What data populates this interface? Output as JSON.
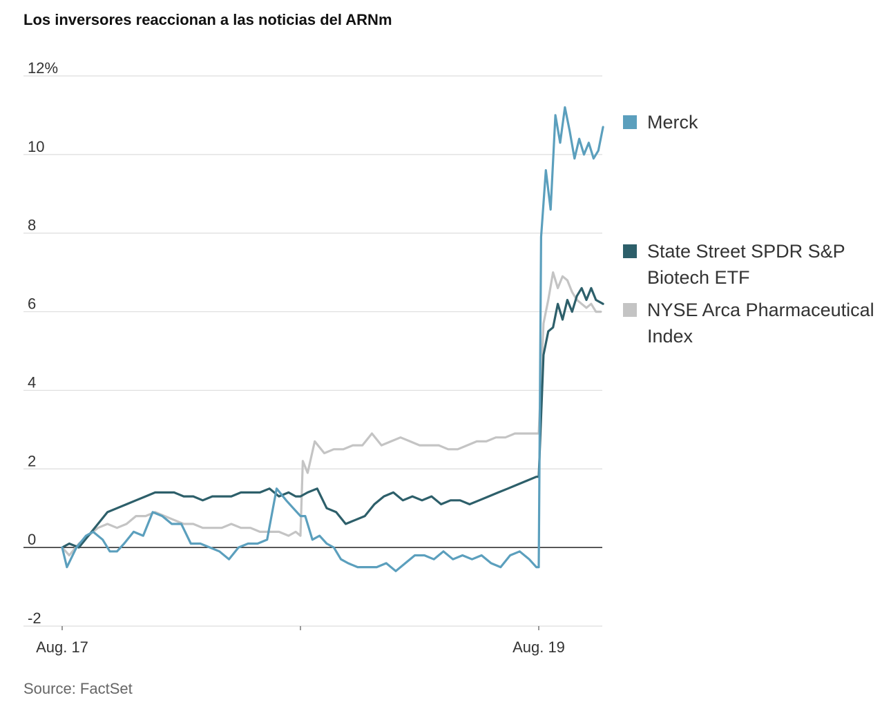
{
  "title": "Los inversores reaccionan a las noticias del ARNm",
  "source": "Source: FactSet",
  "chart_data": {
    "type": "line",
    "ylim": [
      -2,
      12
    ],
    "yticks": [
      "12%",
      "10",
      "8",
      "6",
      "4",
      "2",
      "0",
      "-2"
    ],
    "ytick_values": [
      12,
      10,
      8,
      6,
      4,
      2,
      0,
      -2
    ],
    "xticks": [
      "Aug. 17",
      "",
      "Aug. 19"
    ],
    "xtick_values": [
      0,
      1,
      2
    ],
    "xlim": [
      0,
      2.27
    ],
    "grid": true,
    "legend_position": "right",
    "series": [
      {
        "name": "Merck",
        "color": "#5b9fbd",
        "x": [
          0,
          0.02,
          0.06,
          0.1,
          0.13,
          0.17,
          0.2,
          0.23,
          0.26,
          0.3,
          0.34,
          0.38,
          0.42,
          0.46,
          0.5,
          0.54,
          0.58,
          0.62,
          0.66,
          0.7,
          0.74,
          0.78,
          0.82,
          0.86,
          0.9,
          0.94,
          0.97,
          1.0,
          1.02,
          1.05,
          1.08,
          1.11,
          1.14,
          1.17,
          1.2,
          1.24,
          1.28,
          1.32,
          1.36,
          1.4,
          1.44,
          1.48,
          1.52,
          1.56,
          1.6,
          1.64,
          1.68,
          1.72,
          1.76,
          1.8,
          1.84,
          1.88,
          1.92,
          1.96,
          1.99,
          2.0,
          2.01,
          2.03,
          2.05,
          2.07,
          2.09,
          2.11,
          2.13,
          2.15,
          2.17,
          2.19,
          2.21,
          2.23,
          2.25,
          2.27
        ],
        "values": [
          0.0,
          -0.5,
          0.0,
          0.3,
          0.4,
          0.2,
          -0.1,
          -0.1,
          0.1,
          0.4,
          0.3,
          0.9,
          0.8,
          0.6,
          0.6,
          0.1,
          0.1,
          0.0,
          -0.1,
          -0.3,
          0.0,
          0.1,
          0.1,
          0.2,
          1.5,
          1.2,
          1.0,
          0.8,
          0.8,
          0.2,
          0.3,
          0.1,
          0.0,
          -0.3,
          -0.4,
          -0.5,
          -0.5,
          -0.5,
          -0.4,
          -0.6,
          -0.4,
          -0.2,
          -0.2,
          -0.3,
          -0.1,
          -0.3,
          -0.2,
          -0.3,
          -0.2,
          -0.4,
          -0.5,
          -0.2,
          -0.1,
          -0.3,
          -0.5,
          -0.5,
          7.9,
          9.6,
          8.6,
          11.0,
          10.3,
          11.2,
          10.6,
          9.9,
          10.4,
          10.0,
          10.3,
          9.9,
          10.1,
          10.7
        ]
      },
      {
        "name": "State Street SPDR S&P Biotech ETF",
        "color": "#2d5f6a",
        "x": [
          0,
          0.03,
          0.07,
          0.11,
          0.15,
          0.19,
          0.23,
          0.27,
          0.31,
          0.35,
          0.39,
          0.43,
          0.47,
          0.51,
          0.55,
          0.59,
          0.63,
          0.67,
          0.71,
          0.75,
          0.79,
          0.83,
          0.87,
          0.91,
          0.95,
          0.98,
          1.0,
          1.03,
          1.07,
          1.11,
          1.15,
          1.19,
          1.23,
          1.27,
          1.31,
          1.35,
          1.39,
          1.43,
          1.47,
          1.51,
          1.55,
          1.59,
          1.63,
          1.67,
          1.71,
          1.75,
          1.79,
          1.83,
          1.87,
          1.91,
          1.95,
          1.99,
          2.0,
          2.02,
          2.04,
          2.06,
          2.08,
          2.1,
          2.12,
          2.14,
          2.16,
          2.18,
          2.2,
          2.22,
          2.24,
          2.27
        ],
        "values": [
          0.0,
          0.1,
          0.0,
          0.3,
          0.6,
          0.9,
          1.0,
          1.1,
          1.2,
          1.3,
          1.4,
          1.4,
          1.4,
          1.3,
          1.3,
          1.2,
          1.3,
          1.3,
          1.3,
          1.4,
          1.4,
          1.4,
          1.5,
          1.3,
          1.4,
          1.3,
          1.3,
          1.4,
          1.5,
          1.0,
          0.9,
          0.6,
          0.7,
          0.8,
          1.1,
          1.3,
          1.4,
          1.2,
          1.3,
          1.2,
          1.3,
          1.1,
          1.2,
          1.2,
          1.1,
          1.2,
          1.3,
          1.4,
          1.5,
          1.6,
          1.7,
          1.8,
          1.8,
          4.9,
          5.5,
          5.6,
          6.2,
          5.8,
          6.3,
          6.0,
          6.4,
          6.6,
          6.3,
          6.6,
          6.3,
          6.2
        ]
      },
      {
        "name": "NYSE Arca Pharmaceutical Index",
        "color": "#c4c4c4",
        "x": [
          0,
          0.03,
          0.07,
          0.11,
          0.15,
          0.19,
          0.23,
          0.27,
          0.31,
          0.35,
          0.39,
          0.43,
          0.47,
          0.51,
          0.55,
          0.59,
          0.63,
          0.67,
          0.71,
          0.75,
          0.79,
          0.83,
          0.87,
          0.91,
          0.95,
          0.98,
          1.0,
          1.01,
          1.03,
          1.06,
          1.1,
          1.14,
          1.18,
          1.22,
          1.26,
          1.3,
          1.34,
          1.38,
          1.42,
          1.46,
          1.5,
          1.54,
          1.58,
          1.62,
          1.66,
          1.7,
          1.74,
          1.78,
          1.82,
          1.86,
          1.9,
          1.94,
          1.98,
          2.0,
          2.02,
          2.04,
          2.06,
          2.08,
          2.1,
          2.12,
          2.14,
          2.16,
          2.18,
          2.2,
          2.22,
          2.24,
          2.26
        ],
        "values": [
          0.0,
          -0.2,
          0.1,
          0.3,
          0.5,
          0.6,
          0.5,
          0.6,
          0.8,
          0.8,
          0.9,
          0.8,
          0.7,
          0.6,
          0.6,
          0.5,
          0.5,
          0.5,
          0.6,
          0.5,
          0.5,
          0.4,
          0.4,
          0.4,
          0.3,
          0.4,
          0.3,
          2.2,
          1.9,
          2.7,
          2.4,
          2.5,
          2.5,
          2.6,
          2.6,
          2.9,
          2.6,
          2.7,
          2.8,
          2.7,
          2.6,
          2.6,
          2.6,
          2.5,
          2.5,
          2.6,
          2.7,
          2.7,
          2.8,
          2.8,
          2.9,
          2.9,
          2.9,
          2.9,
          5.7,
          6.3,
          7.0,
          6.6,
          6.9,
          6.8,
          6.5,
          6.3,
          6.2,
          6.1,
          6.2,
          6.0,
          6.0
        ]
      }
    ]
  }
}
